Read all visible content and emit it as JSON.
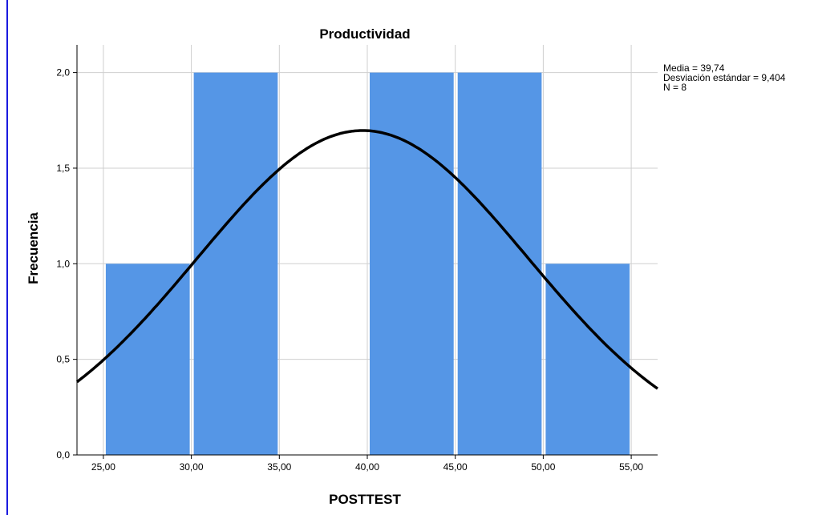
{
  "chart_data": {
    "type": "bar",
    "title": "Productividad",
    "xlabel": "POSTTEST",
    "ylabel": "Frecuencia",
    "bins": [
      {
        "from": 25,
        "to": 30,
        "count": 1
      },
      {
        "from": 30,
        "to": 35,
        "count": 2
      },
      {
        "from": 35,
        "to": 40,
        "count": 0
      },
      {
        "from": 40,
        "to": 45,
        "count": 2
      },
      {
        "from": 45,
        "to": 50,
        "count": 2
      },
      {
        "from": 50,
        "to": 55,
        "count": 1
      }
    ],
    "xlim": [
      23.5,
      56.5
    ],
    "ylim": [
      0,
      2.0
    ],
    "x_ticks": [
      25,
      30,
      35,
      40,
      45,
      50,
      55
    ],
    "x_tick_labels": [
      "25,00",
      "30,00",
      "35,00",
      "40,00",
      "45,00",
      "50,00",
      "55,00"
    ],
    "y_ticks": [
      0,
      0.5,
      1.0,
      1.5,
      2.0
    ],
    "y_tick_labels": [
      "0,0",
      "0,5",
      "1,0",
      "1,5",
      "2,0"
    ],
    "normal_curve": {
      "mean": 39.74,
      "sd": 9.404,
      "n": 8,
      "bin_width": 5
    },
    "stats": [
      "Media = 39,74",
      "Desviación estándar = 9,404",
      "N = 8"
    ],
    "grid": true,
    "colors": {
      "bar": "#5596e6",
      "curve": "#000000",
      "grid": "#cfcfcf",
      "axis": "#000000"
    }
  }
}
